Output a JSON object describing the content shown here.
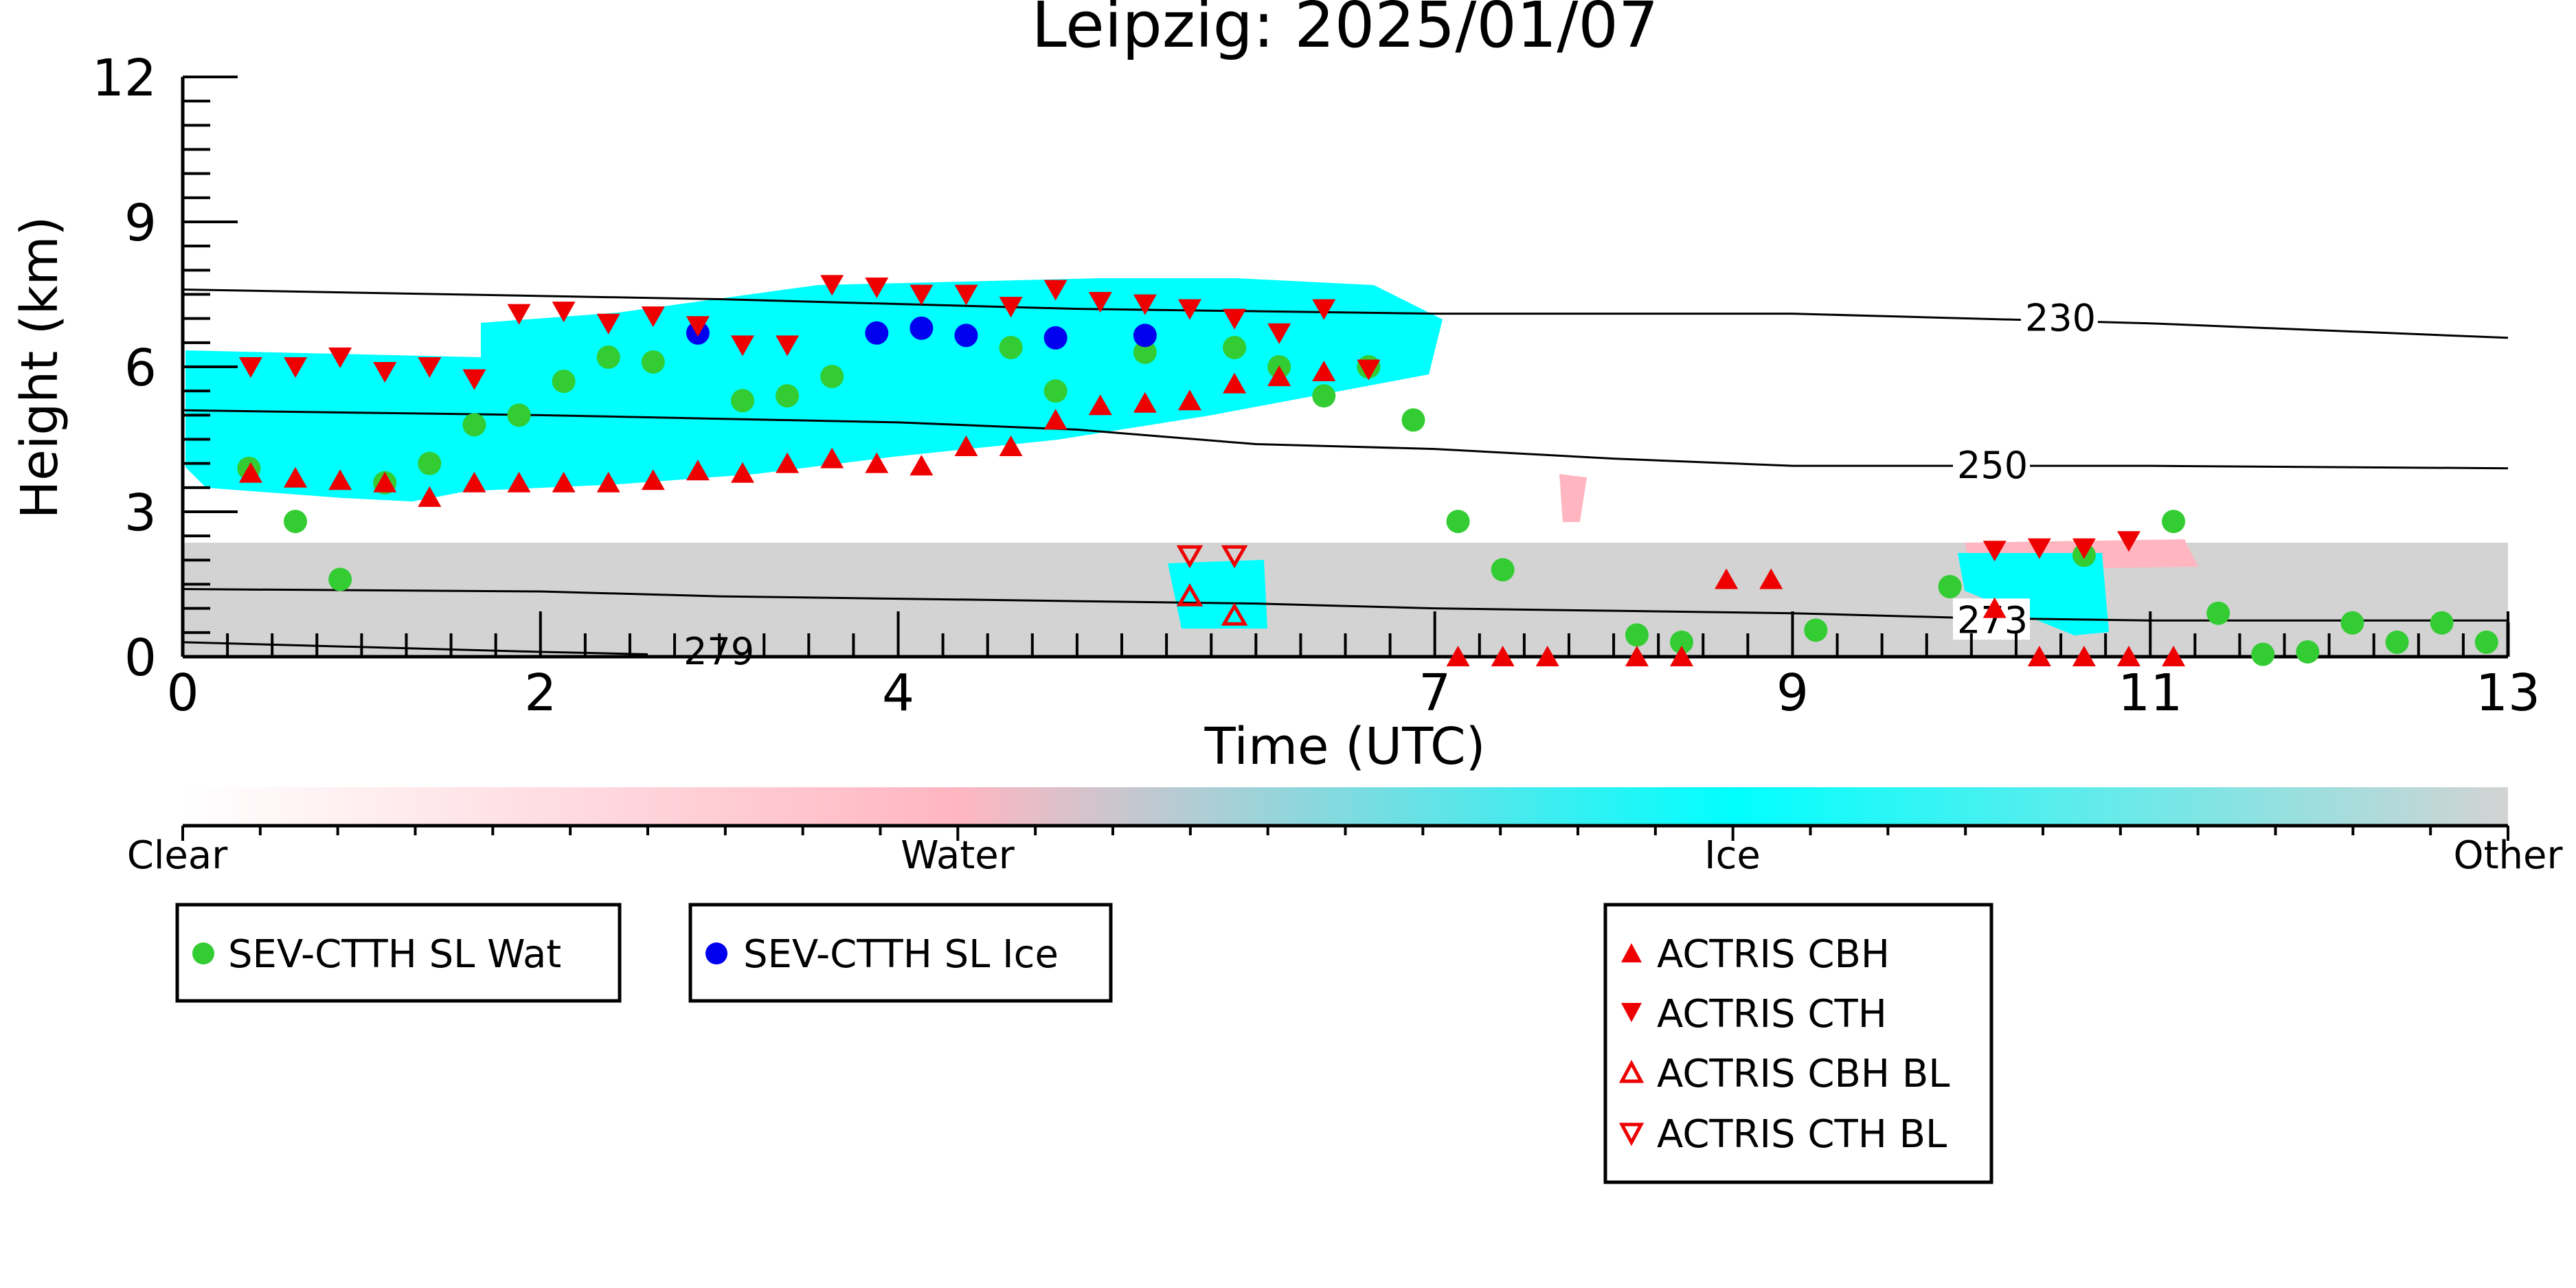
{
  "chart_data": {
    "type": "scatter",
    "title": "Leipzig: 2025/01/07",
    "xlabel": "Time (UTC)",
    "ylabel": "Height (km)",
    "xlim": [
      0,
      13
    ],
    "ylim": [
      0,
      12
    ],
    "x_ticks": [
      0,
      2,
      4,
      7,
      9,
      11,
      13
    ],
    "y_ticks": [
      0,
      3,
      6,
      9,
      12
    ],
    "colors": {
      "clear": "#ffffff",
      "water": "#ffb6c1",
      "ice": "#00ffff",
      "other": "#d3d3d3",
      "sev_wat": "#33cc33",
      "sev_ice": "#0000ee",
      "actris": "#ee0000"
    },
    "colorbar": {
      "labels": [
        "Clear",
        "Water",
        "Ice",
        "Other"
      ]
    },
    "contours": [
      {
        "label": "230",
        "x": [
          0,
          3,
          5,
          7,
          9,
          11,
          13
        ],
        "y": [
          7.6,
          7.4,
          7.2,
          7.1,
          7.1,
          6.9,
          6.6
        ],
        "label_x": 10.3,
        "label_y": 7.0
      },
      {
        "label": "250",
        "x": [
          0,
          2,
          4,
          5,
          6,
          7,
          8,
          9,
          10.5,
          11,
          13
        ],
        "y": [
          5.1,
          5.0,
          4.85,
          4.7,
          4.4,
          4.3,
          4.1,
          3.95,
          3.95,
          3.95,
          3.9
        ],
        "label_x": 9.92,
        "label_y": 3.95
      },
      {
        "label": "273",
        "x": [
          0,
          2,
          3,
          4,
          5,
          6,
          7,
          8,
          9,
          10,
          11,
          12,
          13
        ],
        "y": [
          1.4,
          1.35,
          1.25,
          1.2,
          1.15,
          1.1,
          1.0,
          0.95,
          0.9,
          0.8,
          0.75,
          0.75,
          0.75
        ],
        "label_x": 9.92,
        "label_y": 0.75
      },
      {
        "label": "279",
        "x": [
          0,
          1,
          2,
          2.6
        ],
        "y": [
          0.3,
          0.2,
          0.1,
          0.05
        ],
        "label_x": 2.8,
        "label_y": 0.1
      }
    ],
    "series": [
      {
        "name": "SEV-CTTH SL Wat",
        "marker": "circle",
        "x": [
          0.37,
          0.63,
          0.88,
          1.13,
          1.38,
          1.63,
          1.88,
          2.13,
          2.38,
          2.63,
          3.13,
          3.38,
          3.63,
          4.63,
          4.88,
          5.38,
          5.88,
          6.13,
          6.38,
          6.63,
          6.88,
          7.13,
          7.38,
          8.13,
          8.38,
          9.13,
          9.88,
          10.63,
          11.13,
          11.38,
          11.63,
          11.88,
          12.13,
          12.38,
          12.63,
          12.88
        ],
        "y": [
          3.9,
          2.8,
          1.6,
          3.6,
          4.0,
          4.8,
          5.0,
          5.7,
          6.2,
          6.1,
          5.3,
          5.4,
          5.8,
          6.4,
          5.5,
          6.3,
          6.4,
          6.0,
          5.4,
          6.0,
          4.9,
          2.8,
          1.8,
          0.45,
          0.3,
          0.55,
          1.45,
          2.1,
          2.8,
          0.9,
          0.05,
          0.1,
          0.7,
          0.3,
          0.7,
          0.3
        ]
      },
      {
        "name": "SEV-CTTH SL Ice",
        "marker": "circle",
        "x": [
          2.88,
          3.88,
          4.13,
          4.38,
          4.88,
          5.38
        ],
        "y": [
          6.7,
          6.7,
          6.8,
          6.65,
          6.6,
          6.65
        ]
      },
      {
        "name": "ACTRIS CBH",
        "marker": "triangle-up",
        "x": [
          0.38,
          0.63,
          0.88,
          1.13,
          1.38,
          1.63,
          1.88,
          2.13,
          2.38,
          2.63,
          2.88,
          3.13,
          3.38,
          3.63,
          3.88,
          4.13,
          4.38,
          4.63,
          4.88,
          5.13,
          5.38,
          5.63,
          5.88,
          6.13,
          6.38,
          7.13,
          7.38,
          7.63,
          8.13,
          8.38,
          8.63,
          8.88,
          10.13,
          10.38,
          10.63,
          10.88,
          11.13
        ],
        "y": [
          3.8,
          3.7,
          3.65,
          3.6,
          3.3,
          3.6,
          3.6,
          3.6,
          3.6,
          3.65,
          3.85,
          3.8,
          4.0,
          4.1,
          4.0,
          3.95,
          4.35,
          4.35,
          4.9,
          5.2,
          5.25,
          5.3,
          5.65,
          5.8,
          5.9,
          0.0,
          0.0,
          0.0,
          0.0,
          0.0,
          1.6,
          1.6,
          1.0,
          0.0,
          0.0,
          0.0,
          0.0
        ]
      },
      {
        "name": "ACTRIS CTH",
        "marker": "triangle-down",
        "x": [
          0.38,
          0.63,
          0.88,
          1.13,
          1.38,
          1.63,
          1.88,
          2.13,
          2.38,
          2.63,
          2.88,
          3.13,
          3.38,
          3.63,
          3.88,
          4.13,
          4.38,
          4.63,
          4.88,
          5.13,
          5.38,
          5.63,
          5.88,
          6.13,
          6.38,
          6.63,
          10.13,
          10.38,
          10.63,
          10.88
        ],
        "y": [
          6.0,
          6.0,
          6.2,
          5.9,
          6.0,
          5.75,
          7.1,
          7.15,
          6.9,
          7.05,
          6.85,
          6.45,
          6.45,
          7.7,
          7.65,
          7.5,
          7.5,
          7.25,
          7.6,
          7.35,
          7.3,
          7.2,
          7.0,
          6.7,
          7.2,
          5.95,
          2.2,
          2.25,
          2.25,
          2.4
        ]
      },
      {
        "name": "ACTRIS CBH BL",
        "marker": "triangle-up-open",
        "x": [
          5.63,
          5.88
        ],
        "y": [
          1.25,
          0.85
        ]
      },
      {
        "name": "ACTRIS CTH BL",
        "marker": "triangle-down-open",
        "x": [
          5.63,
          5.88
        ],
        "y": [
          2.1,
          2.1
        ]
      }
    ]
  }
}
